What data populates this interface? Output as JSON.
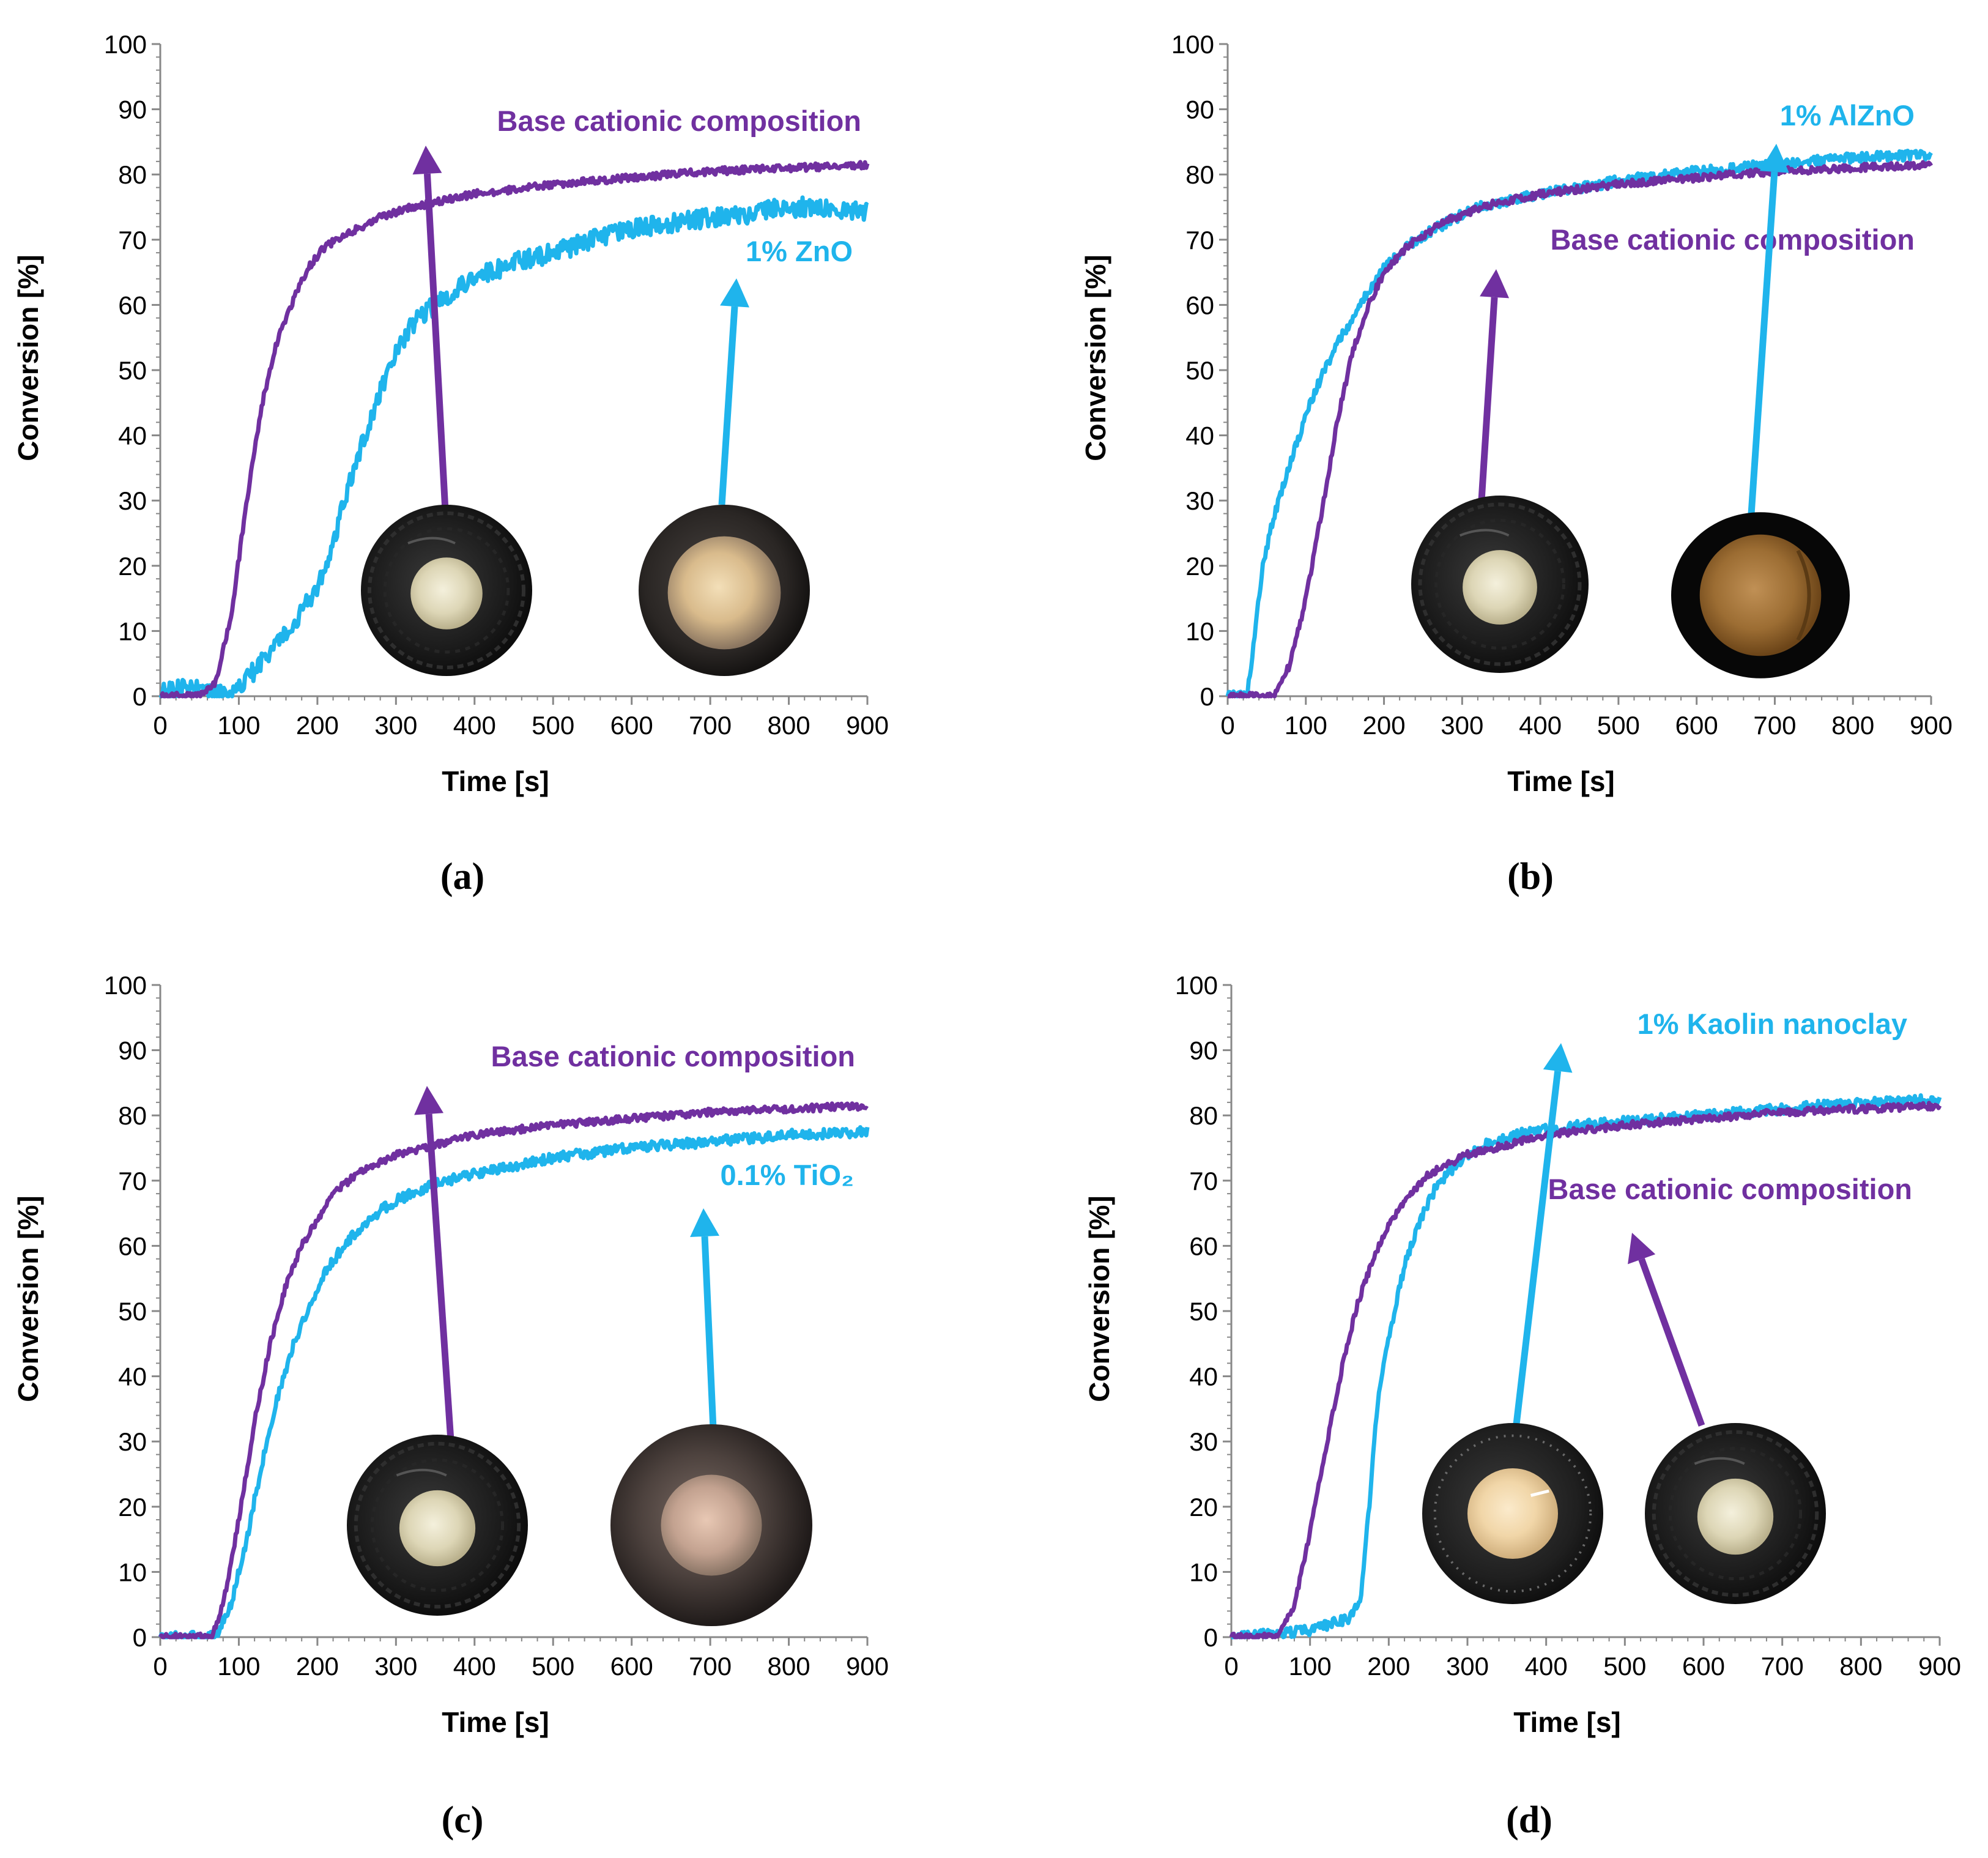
{
  "colors": {
    "base": "#7030A0",
    "additive": "#1FB4EC"
  },
  "chart_data": [
    {
      "type": "line",
      "panel_label": "(a)",
      "xlabel": "Time [s]",
      "ylabel": "Conversion [%]",
      "xlim": [
        0,
        900
      ],
      "ylim": [
        0,
        100
      ],
      "x_ticks": [
        "0",
        "100",
        "200",
        "300",
        "400",
        "500",
        "600",
        "700",
        "800",
        "900"
      ],
      "y_ticks": [
        "0",
        "10",
        "20",
        "30",
        "40",
        "50",
        "60",
        "70",
        "80",
        "90",
        "100"
      ],
      "series": [
        {
          "name": "Base cationic composition",
          "points": [
            [
              0,
              0
            ],
            [
              50,
              0
            ],
            [
              70,
              2
            ],
            [
              90,
              12
            ],
            [
              110,
              30
            ],
            [
              130,
              45
            ],
            [
              150,
              55
            ],
            [
              170,
              61
            ],
            [
              190,
              66
            ],
            [
              210,
              69
            ],
            [
              240,
              71
            ],
            [
              280,
              73.5
            ],
            [
              320,
              75
            ],
            [
              400,
              77
            ],
            [
              500,
              78.5
            ],
            [
              600,
              79.5
            ],
            [
              700,
              80.5
            ],
            [
              800,
              81
            ],
            [
              900,
              81.5
            ]
          ]
        },
        {
          "name": "1% ZnO",
          "points": [
            [
              0,
              1
            ],
            [
              60,
              1
            ],
            [
              80,
              0
            ],
            [
              100,
              1
            ],
            [
              120,
              4
            ],
            [
              150,
              8
            ],
            [
              180,
              13
            ],
            [
              210,
              19
            ],
            [
              230,
              28
            ],
            [
              260,
              40
            ],
            [
              290,
              50
            ],
            [
              320,
              57
            ],
            [
              360,
              61
            ],
            [
              400,
              64
            ],
            [
              450,
              66.5
            ],
            [
              500,
              68
            ],
            [
              550,
              70
            ],
            [
              600,
              71.5
            ],
            [
              650,
              72.5
            ],
            [
              700,
              73.5
            ],
            [
              750,
              74
            ],
            [
              800,
              75
            ],
            [
              850,
              75
            ],
            [
              900,
              74.5
            ]
          ]
        }
      ],
      "annotations": [
        {
          "text": "Base cationic composition",
          "color": "base"
        },
        {
          "text": "1% ZnO",
          "color": "additive"
        }
      ]
    },
    {
      "type": "line",
      "panel_label": "(b)",
      "xlabel": "Time [s]",
      "ylabel": "Conversion [%]",
      "xlim": [
        0,
        900
      ],
      "ylim": [
        0,
        100
      ],
      "x_ticks": [
        "0",
        "100",
        "200",
        "300",
        "400",
        "500",
        "600",
        "700",
        "800",
        "900"
      ],
      "y_ticks": [
        "0",
        "10",
        "20",
        "30",
        "40",
        "50",
        "60",
        "70",
        "80",
        "90",
        "100"
      ],
      "series": [
        {
          "name": "Base cationic composition",
          "points": [
            [
              0,
              0
            ],
            [
              60,
              0
            ],
            [
              80,
              5
            ],
            [
              100,
              15
            ],
            [
              120,
              28
            ],
            [
              140,
              42
            ],
            [
              160,
              53
            ],
            [
              180,
              60
            ],
            [
              200,
              65
            ],
            [
              230,
              69
            ],
            [
              280,
              73
            ],
            [
              340,
              75.5
            ],
            [
              400,
              77
            ],
            [
              500,
              78.5
            ],
            [
              600,
              79.5
            ],
            [
              700,
              80.5
            ],
            [
              800,
              81
            ],
            [
              900,
              81.5
            ]
          ]
        },
        {
          "name": "1% AlZnO",
          "points": [
            [
              0,
              0
            ],
            [
              25,
              0
            ],
            [
              35,
              10
            ],
            [
              45,
              20
            ],
            [
              60,
              28
            ],
            [
              80,
              36
            ],
            [
              100,
              43
            ],
            [
              120,
              49
            ],
            [
              140,
              54
            ],
            [
              160,
              58
            ],
            [
              180,
              62
            ],
            [
              200,
              65.5
            ],
            [
              230,
              69
            ],
            [
              270,
              72
            ],
            [
              320,
              75
            ],
            [
              400,
              77
            ],
            [
              500,
              79
            ],
            [
              600,
              80.5
            ],
            [
              700,
              81.5
            ],
            [
              800,
              82.5
            ],
            [
              900,
              83
            ]
          ]
        }
      ],
      "annotations": [
        {
          "text": "Base cationic composition",
          "color": "base"
        },
        {
          "text": "1% AlZnO",
          "color": "additive"
        }
      ]
    },
    {
      "type": "line",
      "panel_label": "(c)",
      "xlabel": "Time [s]",
      "ylabel": "Conversion [%]",
      "xlim": [
        0,
        900
      ],
      "ylim": [
        0,
        100
      ],
      "x_ticks": [
        "0",
        "100",
        "200",
        "300",
        "400",
        "500",
        "600",
        "700",
        "800",
        "900"
      ],
      "y_ticks": [
        "0",
        "10",
        "20",
        "30",
        "40",
        "50",
        "60",
        "70",
        "80",
        "90",
        "100"
      ],
      "series": [
        {
          "name": "Base cationic composition",
          "points": [
            [
              0,
              0
            ],
            [
              65,
              0
            ],
            [
              80,
              5
            ],
            [
              100,
              18
            ],
            [
              120,
              33
            ],
            [
              140,
              45
            ],
            [
              160,
              54
            ],
            [
              180,
              60
            ],
            [
              200,
              64
            ],
            [
              220,
              68
            ],
            [
              250,
              71
            ],
            [
              300,
              74
            ],
            [
              350,
              75.5
            ],
            [
              400,
              77
            ],
            [
              500,
              78.5
            ],
            [
              600,
              79.5
            ],
            [
              700,
              80.5
            ],
            [
              800,
              81
            ],
            [
              900,
              81.5
            ]
          ]
        },
        {
          "name": "0.1% TiO₂",
          "points": [
            [
              0,
              0
            ],
            [
              70,
              0
            ],
            [
              90,
              5
            ],
            [
              110,
              15
            ],
            [
              130,
              27
            ],
            [
              150,
              37
            ],
            [
              170,
              45
            ],
            [
              190,
              51
            ],
            [
              210,
              56
            ],
            [
              240,
              61
            ],
            [
              270,
              64.5
            ],
            [
              300,
              67
            ],
            [
              350,
              69.5
            ],
            [
              400,
              71
            ],
            [
              500,
              73.5
            ],
            [
              600,
              75
            ],
            [
              700,
              76
            ],
            [
              800,
              77
            ],
            [
              900,
              77.5
            ]
          ]
        }
      ],
      "annotations": [
        {
          "text": "Base cationic composition",
          "color": "base"
        },
        {
          "text": "0.1% TiO₂",
          "color": "additive"
        }
      ]
    },
    {
      "type": "line",
      "panel_label": "(d)",
      "xlabel": "Time [s]",
      "ylabel": "Conversion [%]",
      "xlim": [
        0,
        900
      ],
      "ylim": [
        0,
        100
      ],
      "x_ticks": [
        "0",
        "100",
        "200",
        "300",
        "400",
        "500",
        "600",
        "700",
        "800",
        "900"
      ],
      "y_ticks": [
        "0",
        "10",
        "20",
        "30",
        "40",
        "50",
        "60",
        "70",
        "80",
        "90",
        "100"
      ],
      "series": [
        {
          "name": "Base cationic composition",
          "points": [
            [
              0,
              0
            ],
            [
              60,
              0
            ],
            [
              80,
              5
            ],
            [
              100,
              16
            ],
            [
              120,
              29
            ],
            [
              140,
              41
            ],
            [
              160,
              51
            ],
            [
              180,
              58
            ],
            [
              200,
              63
            ],
            [
              220,
              67
            ],
            [
              250,
              71
            ],
            [
              300,
              74
            ],
            [
              350,
              75.5
            ],
            [
              400,
              77
            ],
            [
              500,
              78.5
            ],
            [
              600,
              79.5
            ],
            [
              700,
              80.5
            ],
            [
              800,
              81
            ],
            [
              900,
              81.5
            ]
          ]
        },
        {
          "name": "1% Kaolin nanoclay",
          "points": [
            [
              0,
              0
            ],
            [
              100,
              1
            ],
            [
              150,
              3
            ],
            [
              165,
              6
            ],
            [
              175,
              20
            ],
            [
              185,
              35
            ],
            [
              200,
              46
            ],
            [
              220,
              57
            ],
            [
              240,
              64
            ],
            [
              260,
              69
            ],
            [
              290,
              73
            ],
            [
              330,
              76
            ],
            [
              380,
              77.5
            ],
            [
              450,
              78.5
            ],
            [
              550,
              79.5
            ],
            [
              650,
              80.5
            ],
            [
              750,
              81.5
            ],
            [
              900,
              82.5
            ]
          ]
        }
      ],
      "annotations": [
        {
          "text": "1% Kaolin nanoclay",
          "color": "additive"
        },
        {
          "text": "Base cationic composition",
          "color": "base"
        }
      ]
    }
  ]
}
